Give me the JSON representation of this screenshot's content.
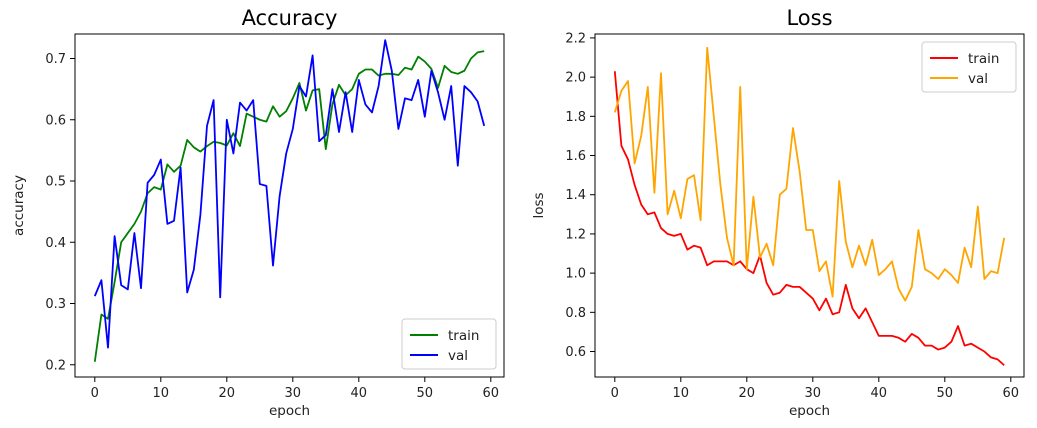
{
  "chart_data": [
    {
      "type": "line",
      "title": "Accuracy",
      "xlabel": "epoch",
      "ylabel": "accuracy",
      "xlim": [
        -3,
        62
      ],
      "ylim": [
        0.18,
        0.74
      ],
      "xticks": [
        0,
        10,
        20,
        30,
        40,
        50,
        60
      ],
      "yticks": [
        0.2,
        0.3,
        0.4,
        0.5,
        0.6,
        0.7
      ],
      "ytick_labels": [
        "0.2",
        "0.3",
        "0.4",
        "0.5",
        "0.6",
        "0.7"
      ],
      "legend_position": "bottom-right",
      "grid": false,
      "series": [
        {
          "name": "train",
          "color": "#008000",
          "values": [
            0.205,
            0.282,
            0.275,
            0.335,
            0.4,
            0.415,
            0.43,
            0.45,
            0.48,
            0.49,
            0.486,
            0.527,
            0.515,
            0.525,
            0.567,
            0.555,
            0.548,
            0.557,
            0.564,
            0.562,
            0.558,
            0.578,
            0.557,
            0.61,
            0.605,
            0.6,
            0.597,
            0.622,
            0.605,
            0.614,
            0.635,
            0.66,
            0.615,
            0.648,
            0.65,
            0.552,
            0.625,
            0.657,
            0.64,
            0.65,
            0.675,
            0.682,
            0.682,
            0.672,
            0.675,
            0.675,
            0.673,
            0.685,
            0.682,
            0.703,
            0.695,
            0.683,
            0.652,
            0.688,
            0.678,
            0.675,
            0.68,
            0.7,
            0.71,
            0.712
          ]
        },
        {
          "name": "val",
          "color": "#0000ff",
          "values": [
            0.312,
            0.338,
            0.228,
            0.41,
            0.33,
            0.323,
            0.415,
            0.325,
            0.497,
            0.51,
            0.535,
            0.43,
            0.435,
            0.522,
            0.318,
            0.355,
            0.445,
            0.59,
            0.632,
            0.31,
            0.6,
            0.545,
            0.628,
            0.615,
            0.632,
            0.495,
            0.492,
            0.362,
            0.475,
            0.545,
            0.585,
            0.655,
            0.638,
            0.705,
            0.565,
            0.575,
            0.65,
            0.58,
            0.645,
            0.58,
            0.665,
            0.625,
            0.612,
            0.655,
            0.73,
            0.68,
            0.585,
            0.635,
            0.632,
            0.665,
            0.605,
            0.68,
            0.645,
            0.6,
            0.655,
            0.525,
            0.655,
            0.645,
            0.63,
            0.59
          ]
        }
      ]
    },
    {
      "type": "line",
      "title": "Loss",
      "xlabel": "epoch",
      "ylabel": "loss",
      "xlim": [
        -3,
        62
      ],
      "ylim": [
        0.47,
        2.22
      ],
      "xticks": [
        0,
        10,
        20,
        30,
        40,
        50,
        60
      ],
      "yticks": [
        0.6,
        0.8,
        1.0,
        1.2,
        1.4,
        1.6,
        1.8,
        2.0,
        2.2
      ],
      "ytick_labels": [
        "0.6",
        "0.8",
        "1.0",
        "1.2",
        "1.4",
        "1.6",
        "1.8",
        "2.0",
        "2.2"
      ],
      "legend_position": "top-right",
      "grid": false,
      "series": [
        {
          "name": "train",
          "color": "#ff0000",
          "values": [
            2.03,
            1.65,
            1.58,
            1.45,
            1.35,
            1.3,
            1.31,
            1.23,
            1.2,
            1.19,
            1.2,
            1.12,
            1.14,
            1.13,
            1.04,
            1.06,
            1.06,
            1.06,
            1.04,
            1.06,
            1.02,
            1.0,
            1.09,
            0.95,
            0.89,
            0.9,
            0.94,
            0.93,
            0.93,
            0.9,
            0.87,
            0.81,
            0.87,
            0.79,
            0.8,
            0.94,
            0.82,
            0.77,
            0.82,
            0.75,
            0.68,
            0.68,
            0.68,
            0.67,
            0.65,
            0.69,
            0.67,
            0.63,
            0.63,
            0.61,
            0.62,
            0.65,
            0.73,
            0.63,
            0.64,
            0.62,
            0.6,
            0.57,
            0.56,
            0.53
          ]
        },
        {
          "name": "val",
          "color": "#ffa500",
          "values": [
            1.82,
            1.93,
            1.98,
            1.56,
            1.7,
            1.95,
            1.41,
            2.02,
            1.3,
            1.42,
            1.28,
            1.48,
            1.5,
            1.27,
            2.15,
            1.8,
            1.45,
            1.18,
            1.04,
            1.95,
            1.02,
            1.39,
            1.08,
            1.15,
            1.04,
            1.4,
            1.43,
            1.74,
            1.52,
            1.22,
            1.22,
            1.01,
            1.06,
            0.88,
            1.47,
            1.16,
            1.03,
            1.14,
            1.04,
            1.17,
            0.99,
            1.02,
            1.06,
            0.92,
            0.86,
            0.93,
            1.22,
            1.02,
            1.0,
            0.97,
            1.02,
            0.99,
            0.95,
            1.13,
            1.03,
            1.34,
            0.97,
            1.01,
            1.0,
            1.18
          ]
        }
      ]
    }
  ]
}
